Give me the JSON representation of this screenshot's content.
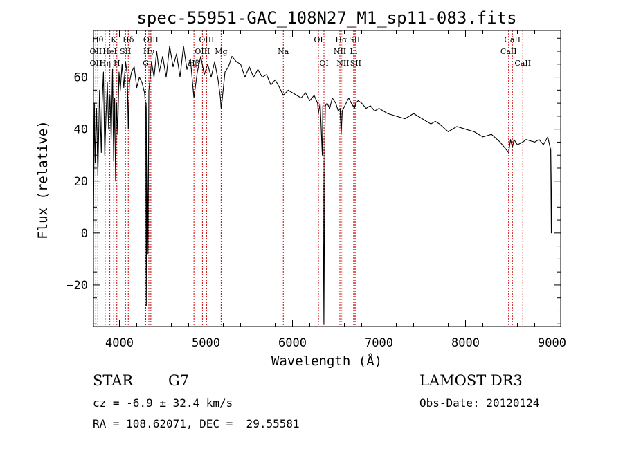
{
  "chart_data": {
    "type": "line",
    "title": "spec-55951-GAC_108N27_M1_sp11-083.fits",
    "xlabel": "Wavelength (Å)",
    "ylabel": "Flux (relative)",
    "xlim": [
      3700,
      9100
    ],
    "ylim": [
      -36,
      78
    ],
    "x_ticks": [
      4000,
      5000,
      6000,
      7000,
      8000,
      9000
    ],
    "y_ticks": [
      -20,
      0,
      20,
      40,
      60
    ],
    "grid": false,
    "series": [
      {
        "name": "flux",
        "x": [
          3700,
          3710,
          3720,
          3735,
          3750,
          3770,
          3790,
          3800,
          3815,
          3830,
          3845,
          3860,
          3875,
          3890,
          3905,
          3920,
          3933,
          3945,
          3955,
          3968,
          3980,
          3995,
          4010,
          4030,
          4050,
          4070,
          4090,
          4102,
          4115,
          4140,
          4170,
          4200,
          4230,
          4260,
          4290,
          4305,
          4310,
          4315,
          4330,
          4340,
          4350,
          4370,
          4400,
          4430,
          4460,
          4500,
          4540,
          4580,
          4620,
          4660,
          4700,
          4740,
          4780,
          4820,
          4861,
          4900,
          4940,
          4980,
          5020,
          5060,
          5100,
          5140,
          5167,
          5175,
          5183,
          5220,
          5260,
          5300,
          5350,
          5400,
          5450,
          5500,
          5550,
          5600,
          5650,
          5700,
          5750,
          5800,
          5850,
          5893,
          5950,
          6000,
          6050,
          6100,
          6150,
          6200,
          6250,
          6290,
          6300,
          6320,
          6345,
          6350,
          6363,
          6375,
          6380,
          6400,
          6430,
          6460,
          6500,
          6530,
          6550,
          6563,
          6575,
          6590,
          6620,
          6650,
          6680,
          6717,
          6731,
          6760,
          6800,
          6850,
          6900,
          6950,
          7000,
          7100,
          7200,
          7300,
          7400,
          7500,
          7600,
          7650,
          7700,
          7800,
          7900,
          8000,
          8100,
          8200,
          8300,
          8400,
          8498,
          8520,
          8542,
          8560,
          8600,
          8662,
          8700,
          8800,
          8850,
          8900,
          8950,
          8985,
          8992,
          8996,
          9000
        ],
        "y": [
          2,
          50,
          27,
          48,
          22,
          55,
          31,
          50,
          62,
          30,
          45,
          58,
          40,
          53,
          36,
          63,
          28,
          52,
          20,
          50,
          38,
          62,
          55,
          65,
          56,
          66,
          61,
          40,
          58,
          62,
          64,
          56,
          60,
          58,
          54,
          48,
          -28,
          50,
          -8,
          55,
          58,
          66,
          60,
          70,
          62,
          68,
          60,
          72,
          64,
          69,
          60,
          72,
          63,
          67,
          52,
          62,
          68,
          61,
          65,
          60,
          66,
          59,
          52,
          48,
          50,
          62,
          64,
          68,
          66,
          65,
          60,
          64,
          60,
          63,
          60,
          61,
          57,
          59,
          56,
          53,
          55,
          54,
          53,
          52,
          54,
          51,
          53,
          50,
          46,
          50,
          30,
          49,
          -35,
          40,
          49,
          50,
          48,
          52,
          50,
          47,
          48,
          38,
          47,
          48,
          50,
          52,
          50,
          48,
          50,
          51,
          50,
          48,
          49,
          47,
          48,
          46,
          45,
          44,
          46,
          44,
          42,
          43,
          42,
          39,
          41,
          40,
          39,
          37,
          38,
          35,
          31,
          36,
          33,
          36,
          34,
          35,
          36,
          35,
          36,
          34,
          37,
          32,
          0,
          10,
          33
        ]
      }
    ],
    "line_markers": [
      {
        "wave": 3750,
        "label": "Hθ",
        "row": 0
      },
      {
        "wave": 3727,
        "label": "OII",
        "row": 1
      },
      {
        "wave": 3727,
        "label": "OII",
        "row": 2
      },
      {
        "wave": 3835,
        "label": "Hη",
        "row": 2
      },
      {
        "wave": 3889,
        "label": "HeI",
        "row": 1
      },
      {
        "wave": 3934,
        "label": "K",
        "row": 0
      },
      {
        "wave": 3970,
        "label": "H",
        "row": 2
      },
      {
        "wave": 4070,
        "label": "SII",
        "row": 1
      },
      {
        "wave": 4102,
        "label": "Hδ",
        "row": 0
      },
      {
        "wave": 4304,
        "label": "G",
        "row": 2
      },
      {
        "wave": 4340,
        "label": "Hγ",
        "row": 1
      },
      {
        "wave": 4363,
        "label": "OIII",
        "row": 0
      },
      {
        "wave": 4861,
        "label": "Hβ",
        "row": 2
      },
      {
        "wave": 4959,
        "label": "OIII",
        "row": 1
      },
      {
        "wave": 5007,
        "label": "OIII",
        "row": 0
      },
      {
        "wave": 5175,
        "label": "Mg",
        "row": 1
      },
      {
        "wave": 5894,
        "label": "Na",
        "row": 1
      },
      {
        "wave": 6300,
        "label": "OI",
        "row": 0
      },
      {
        "wave": 6364,
        "label": "OI",
        "row": 2
      },
      {
        "wave": 6548,
        "label": "NII",
        "row": 1
      },
      {
        "wave": 6563,
        "label": "Hα",
        "row": 0
      },
      {
        "wave": 6583,
        "label": "NII",
        "row": 2
      },
      {
        "wave": 6707,
        "label": "Li",
        "row": 1
      },
      {
        "wave": 6717,
        "label": "SII",
        "row": 0
      },
      {
        "wave": 6731,
        "label": "SII",
        "row": 2
      },
      {
        "wave": 8498,
        "label": "CaII",
        "row": 1
      },
      {
        "wave": 8542,
        "label": "CaII",
        "row": 0
      },
      {
        "wave": 8662,
        "label": "CaII",
        "row": 2
      }
    ]
  },
  "info": {
    "class": "STAR",
    "subclass": "G7",
    "survey": "LAMOST DR3",
    "cz": "cz = -6.9 ± 32.4 km/s",
    "obs_date": "Obs-Date: 20120124",
    "coords": "RA = 108.62071, DEC =  29.55581"
  }
}
